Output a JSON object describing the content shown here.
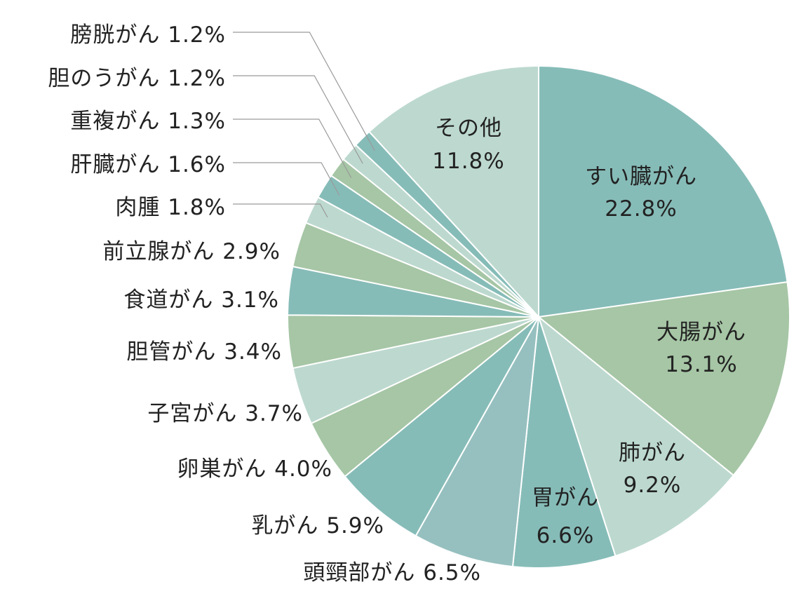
{
  "chart_data": {
    "type": "pie",
    "title": "",
    "slices": [
      {
        "label": "すい臓がん",
        "value": 22.8,
        "color": "#86bcb8"
      },
      {
        "label": "大腸がん",
        "value": 13.1,
        "color": "#a6c6a5"
      },
      {
        "label": "肺がん",
        "value": 9.2,
        "color": "#bdd9cf"
      },
      {
        "label": "胃がん",
        "value": 6.6,
        "color": "#86bcb8"
      },
      {
        "label": "頭頸部がん",
        "value": 6.5,
        "color": "#96c0bf"
      },
      {
        "label": "乳がん",
        "value": 5.9,
        "color": "#86bcb8"
      },
      {
        "label": "卵巣がん",
        "value": 4.0,
        "color": "#a6c6a5"
      },
      {
        "label": "子宮がん",
        "value": 3.7,
        "color": "#bdd9cf"
      },
      {
        "label": "胆管がん",
        "value": 3.4,
        "color": "#a6c6a5"
      },
      {
        "label": "食道がん",
        "value": 3.1,
        "color": "#86bcb8"
      },
      {
        "label": "前立腺がん",
        "value": 2.9,
        "color": "#a6c6a5"
      },
      {
        "label": "肉腫",
        "value": 1.8,
        "color": "#bdd9cf"
      },
      {
        "label": "肝臓がん",
        "value": 1.6,
        "color": "#86bcb8"
      },
      {
        "label": "重複がん",
        "value": 1.3,
        "color": "#a6c6a5"
      },
      {
        "label": "胆のうがん",
        "value": 1.2,
        "color": "#bdd9cf"
      },
      {
        "label": "膀胱がん",
        "value": 1.2,
        "color": "#86bcb8"
      },
      {
        "label": "その他",
        "value": 11.8,
        "color": "#bdd9cf"
      }
    ],
    "inside_labels": [
      {
        "name": "すい臓がん",
        "pct": "22.8%"
      },
      {
        "name": "大腸がん",
        "pct": "13.1%"
      },
      {
        "name": "肺がん",
        "pct": "9.2%"
      },
      {
        "name": "胃がん",
        "pct": "6.6%"
      },
      {
        "name": "その他",
        "pct": "11.8%"
      }
    ],
    "outside_labels": [
      "膀胱がん 1.2%",
      "胆のうがん 1.2%",
      "重複がん 1.3%",
      "肝臓がん 1.6%",
      "肉腫 1.8%",
      "前立腺がん 2.9%",
      "食道がん 3.1%",
      "胆管がん 3.4%",
      "子宮がん 3.7%",
      "卵巣がん 4.0%",
      "乳がん 5.9%",
      "頭頸部がん 6.5%"
    ]
  }
}
